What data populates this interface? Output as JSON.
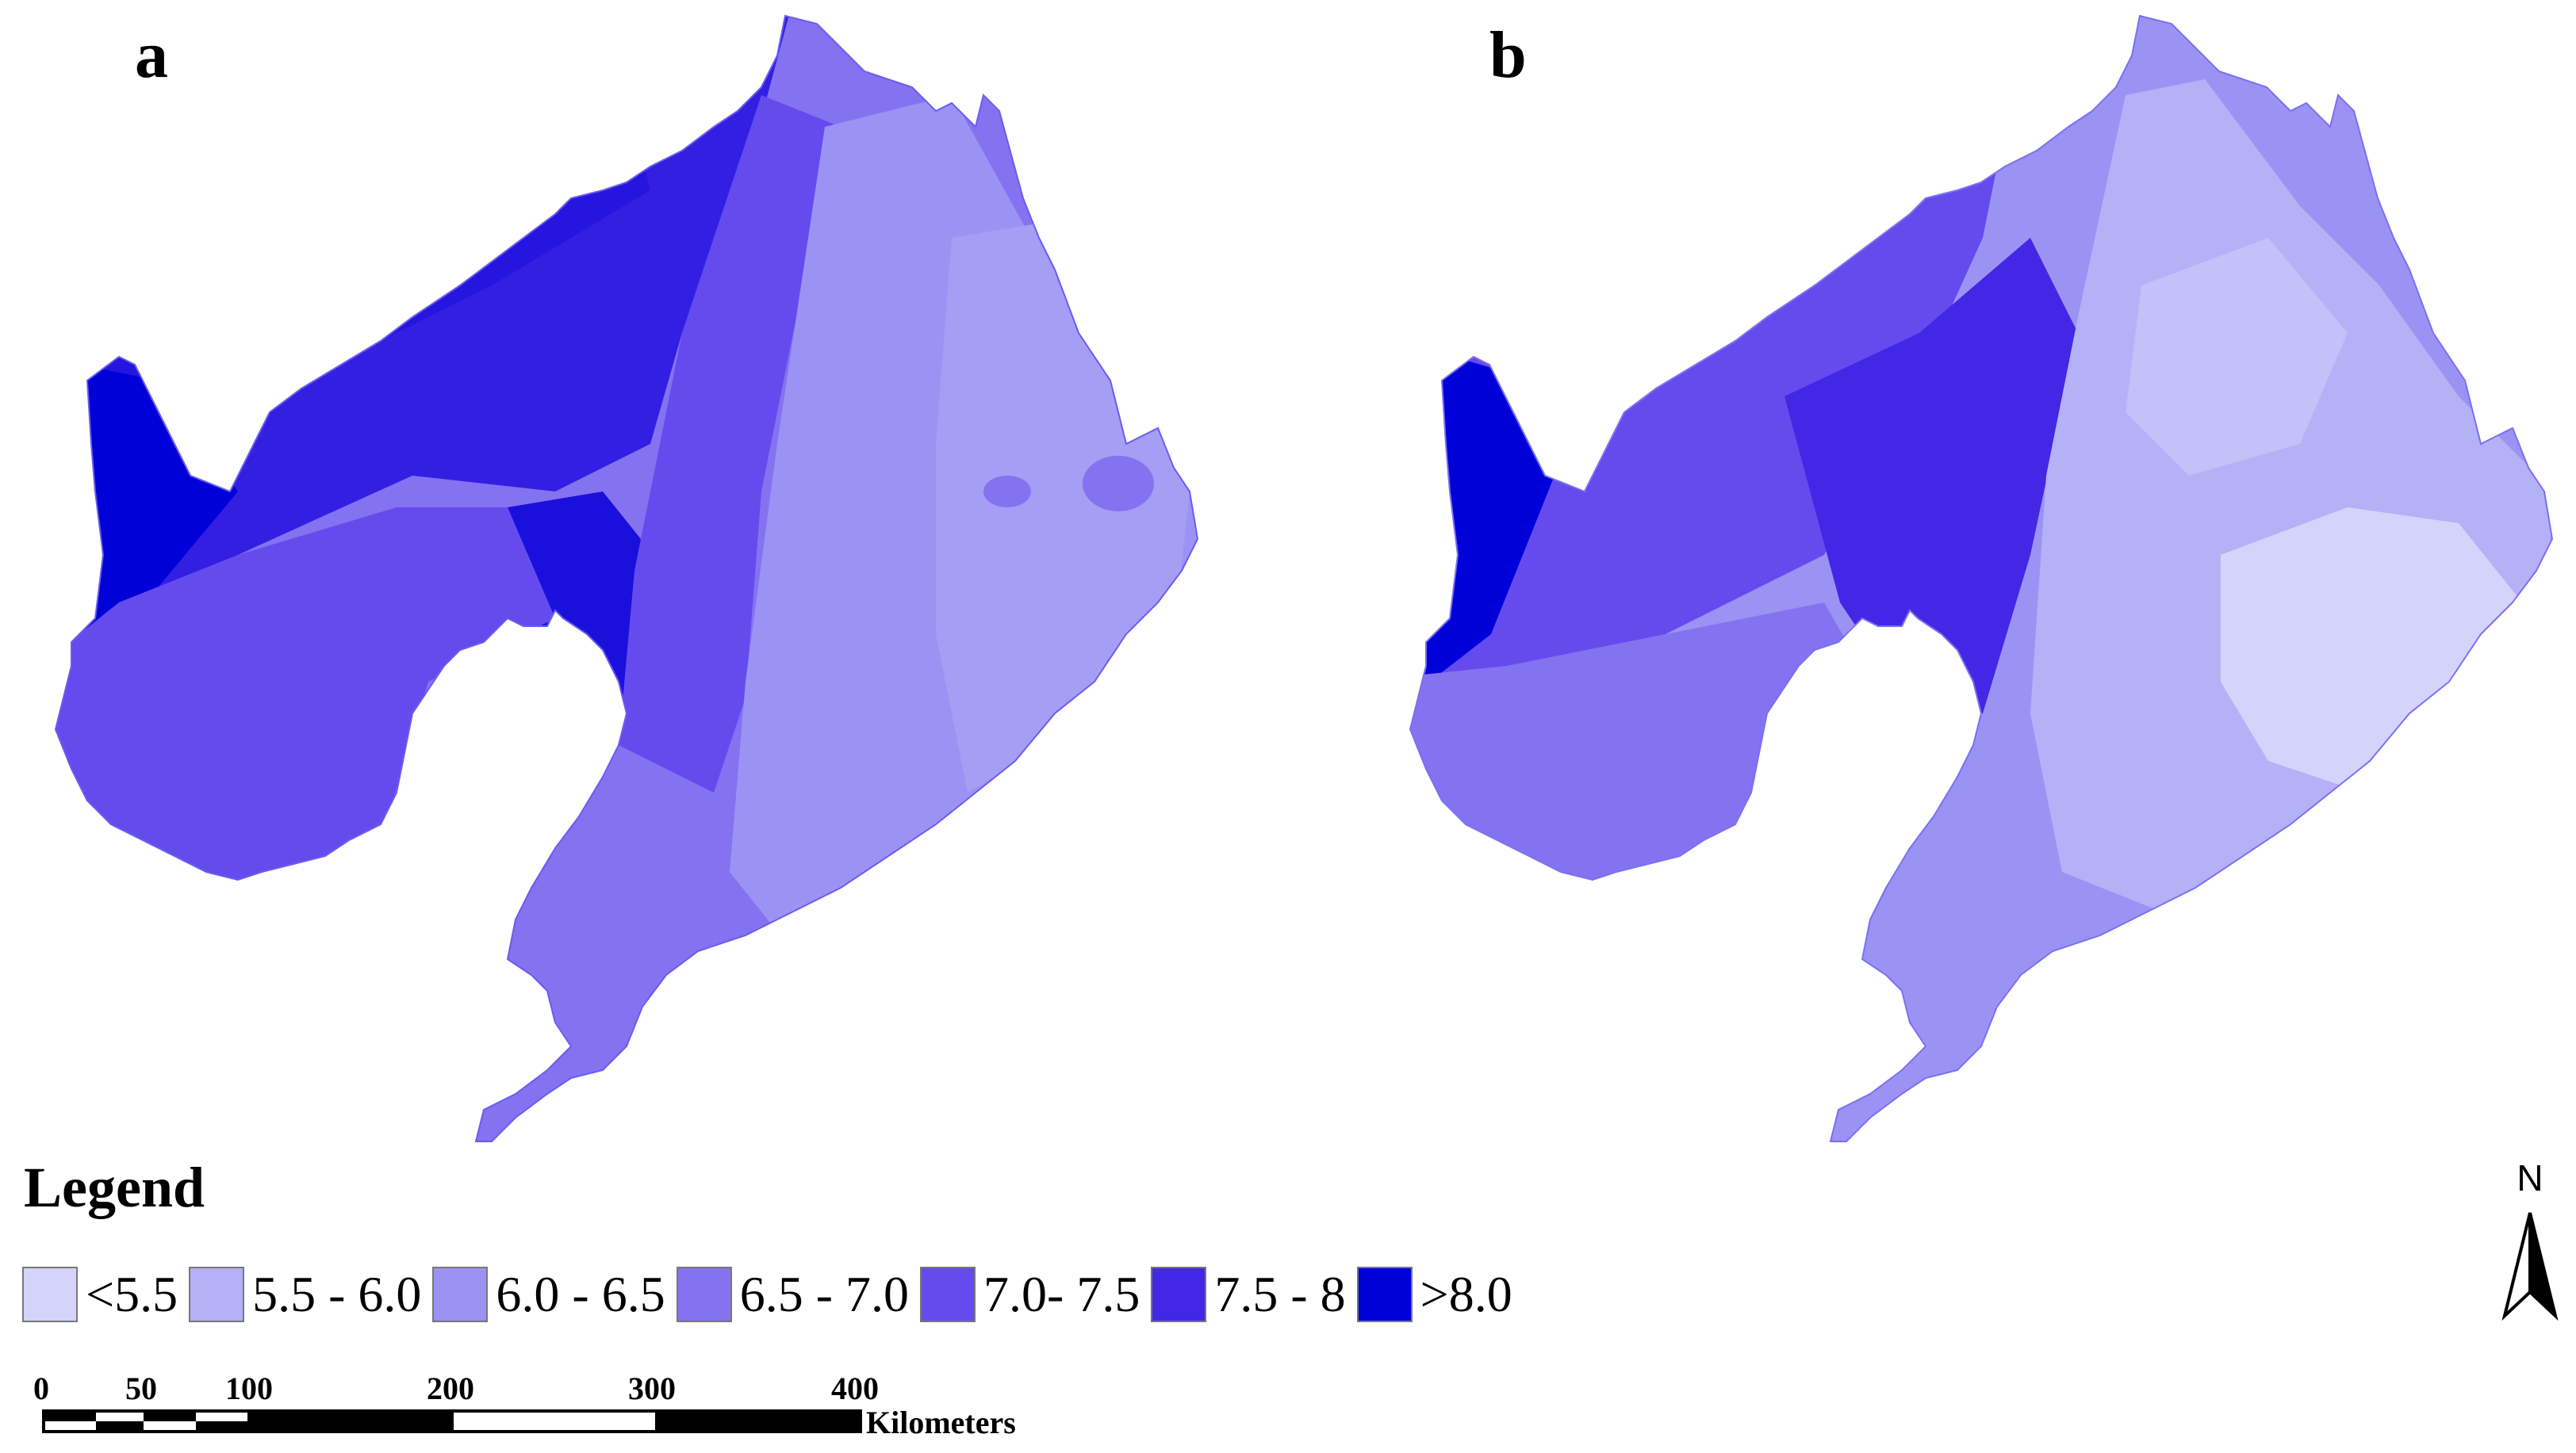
{
  "panels": [
    {
      "label": "a"
    },
    {
      "label": "b"
    }
  ],
  "legend": {
    "title": "Legend",
    "classes": [
      {
        "label": "<5.5",
        "color": "#d4d4fb"
      },
      {
        "label": "5.5 - 6.0",
        "color": "#b4b1f7"
      },
      {
        "label": "6.0 - 6.5",
        "color": "#9b93f4"
      },
      {
        "label": "6.5 - 7.0",
        "color": "#8472f1"
      },
      {
        "label": "7.0- 7.5",
        "color": "#654bee"
      },
      {
        "label": "7.5 - 8",
        "color": "#4326e6"
      },
      {
        "label": ">8.0",
        "color": "#0000d8"
      }
    ]
  },
  "scale_bar": {
    "ticks": [
      "0",
      "50",
      "100",
      "200",
      "300",
      "400"
    ],
    "unit": "Kilometers"
  },
  "north_arrow": {
    "label": "N"
  }
}
